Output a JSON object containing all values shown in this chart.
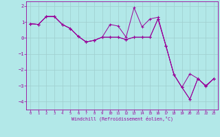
{
  "xlabel": "Windchill (Refroidissement éolien,°C)",
  "background_color": "#b2e8e8",
  "line_color": "#990099",
  "grid_color": "#9ecece",
  "xlim": [
    -0.5,
    23.5
  ],
  "ylim": [
    -4.5,
    2.3
  ],
  "yticks": [
    2,
    1,
    0,
    -1,
    -2,
    -3,
    -4
  ],
  "xticks": [
    0,
    1,
    2,
    3,
    4,
    5,
    6,
    7,
    8,
    9,
    10,
    11,
    12,
    13,
    14,
    15,
    16,
    17,
    18,
    19,
    20,
    21,
    22,
    23
  ],
  "line1_x": [
    0,
    1,
    2,
    3,
    4,
    5,
    6,
    7,
    8,
    9,
    10,
    11,
    12,
    13,
    14,
    15,
    16,
    17,
    18,
    19,
    20,
    21,
    22,
    23
  ],
  "line1_y": [
    0.9,
    0.85,
    1.35,
    1.35,
    0.85,
    0.6,
    0.1,
    -0.25,
    -0.15,
    0.05,
    0.85,
    0.75,
    0.05,
    1.9,
    0.7,
    1.2,
    1.3,
    -0.5,
    -2.3,
    -3.1,
    -3.85,
    -2.55,
    -3.0,
    -2.55
  ],
  "line2_x": [
    0,
    1,
    2,
    3,
    4,
    5,
    6,
    7,
    8,
    9,
    10,
    11,
    12,
    13,
    14,
    15,
    16,
    17,
    18,
    19,
    20,
    21,
    22,
    23
  ],
  "line2_y": [
    0.9,
    0.85,
    1.35,
    1.35,
    0.85,
    0.6,
    0.1,
    -0.25,
    -0.15,
    0.05,
    0.05,
    0.05,
    -0.1,
    0.05,
    0.05,
    0.05,
    1.2,
    -0.5,
    -2.3,
    -3.1,
    -2.25,
    -2.55,
    -3.0,
    -2.55
  ],
  "line3_x": [
    0,
    1,
    2,
    3,
    4,
    5,
    6,
    7,
    8,
    9,
    10,
    11,
    12,
    13,
    14,
    15,
    16,
    17,
    18,
    19,
    20,
    21,
    22,
    23
  ],
  "line3_y": [
    0.9,
    0.85,
    1.35,
    1.35,
    0.85,
    0.6,
    0.1,
    -0.25,
    -0.15,
    0.05,
    0.05,
    0.05,
    -0.1,
    0.05,
    0.05,
    0.05,
    1.2,
    -0.5,
    -2.3,
    -3.1,
    -3.85,
    -2.55,
    -3.05,
    -2.55
  ]
}
